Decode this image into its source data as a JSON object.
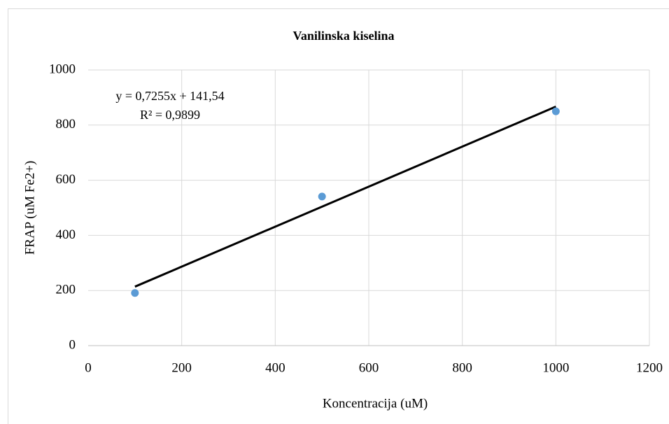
{
  "chart_data": {
    "type": "scatter",
    "title": "Vanilinska kiselina",
    "x_label": "Koncentracija (uM)",
    "y_label": "FRAP (uM Fe2+)",
    "annotations": [
      "y = 0,7255x + 141,54",
      "R² = 0,9899"
    ],
    "x": [
      100,
      500,
      1000
    ],
    "values": [
      191,
      541,
      850
    ],
    "color": "#5b9bd5",
    "trendline": {
      "x": [
        100,
        1000
      ],
      "values": [
        214,
        867
      ],
      "color": "#000000"
    },
    "xlim": [
      0,
      1200
    ],
    "xticks": [
      0,
      200,
      400,
      600,
      800,
      1000,
      1200
    ],
    "ylim": [
      0,
      1000
    ],
    "yticks": [
      0,
      200,
      400,
      600,
      800,
      1000
    ],
    "grid": true
  }
}
